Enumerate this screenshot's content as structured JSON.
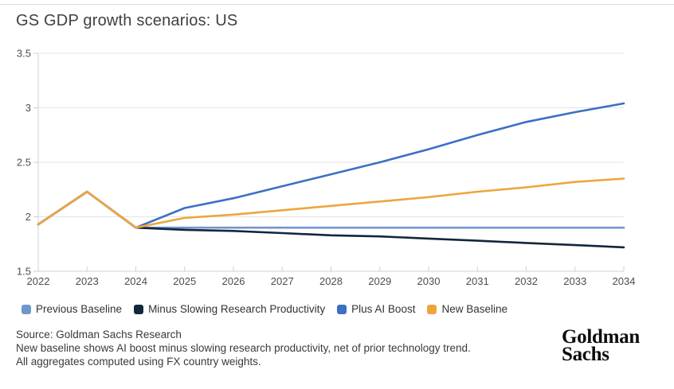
{
  "header": {
    "title": "GS GDP growth scenarios: US"
  },
  "chart_data": {
    "type": "line",
    "title": "GS GDP growth scenarios: US",
    "xlabel": "",
    "ylabel": "",
    "x": [
      2022,
      2023,
      2024,
      2025,
      2026,
      2027,
      2028,
      2029,
      2030,
      2031,
      2032,
      2033,
      2034
    ],
    "series": [
      {
        "name": "Previous Baseline",
        "color": "#7096ce",
        "values": [
          1.93,
          2.23,
          1.9,
          1.9,
          1.9,
          1.9,
          1.9,
          1.9,
          1.9,
          1.9,
          1.9,
          1.9,
          1.9
        ]
      },
      {
        "name": "Minus Slowing Research Productivity",
        "color": "#13263b",
        "values": [
          1.93,
          2.23,
          1.9,
          1.88,
          1.87,
          1.85,
          1.83,
          1.82,
          1.8,
          1.78,
          1.76,
          1.74,
          1.72
        ]
      },
      {
        "name": "Plus AI Boost",
        "color": "#3b70c4",
        "values": [
          1.93,
          2.23,
          1.9,
          2.08,
          2.17,
          2.28,
          2.39,
          2.5,
          2.62,
          2.75,
          2.87,
          2.96,
          3.04
        ]
      },
      {
        "name": "New Baseline",
        "color": "#efa53e",
        "values": [
          1.93,
          2.23,
          1.9,
          1.99,
          2.02,
          2.06,
          2.1,
          2.14,
          2.18,
          2.23,
          2.27,
          2.32,
          2.35
        ]
      }
    ],
    "ylim": [
      1.5,
      3.5
    ],
    "yticks": [
      1.5,
      2,
      2.5,
      3,
      3.5
    ],
    "ytick_labels": [
      "1.5",
      "2",
      "2.5",
      "3",
      "3.5"
    ],
    "grid": "horizontal",
    "legend_position": "bottom"
  },
  "footer": {
    "source_line": "Source: Goldman Sachs Research",
    "note1": "New baseline shows AI boost minus slowing research productivity, net of prior technology trend.",
    "note2": "All aggregates computed using FX country weights."
  },
  "logo": {
    "line1": "Goldman",
    "line2": "Sachs"
  },
  "colors": {
    "grid": "#e4e4e4",
    "axis": "#d0d0d0",
    "tick_text": "#4d4d4d",
    "title_text": "#404040",
    "footer_text": "#3a3a3a"
  }
}
